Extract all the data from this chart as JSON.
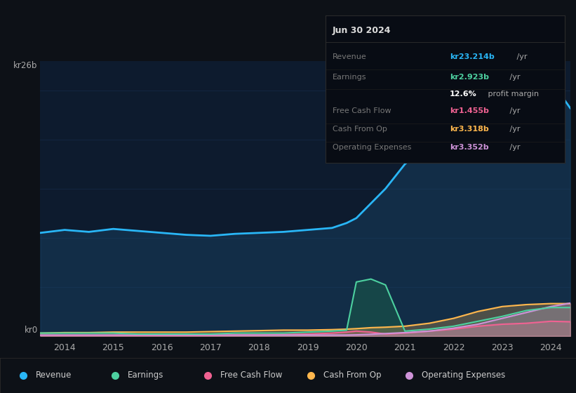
{
  "bg_color": "#0d1117",
  "plot_bg_color": "#0d1b2e",
  "ylabel_top": "kr26b",
  "ylabel_bottom": "kr0",
  "x_years": [
    2013.5,
    2014.0,
    2014.5,
    2015.0,
    2015.5,
    2016.0,
    2016.5,
    2017.0,
    2017.5,
    2018.0,
    2018.5,
    2019.0,
    2019.5,
    2019.8,
    2020.0,
    2020.3,
    2020.6,
    2021.0,
    2021.5,
    2022.0,
    2022.5,
    2023.0,
    2023.5,
    2024.0,
    2024.4
  ],
  "revenue": [
    10.5,
    10.8,
    10.6,
    10.9,
    10.7,
    10.5,
    10.3,
    10.2,
    10.4,
    10.5,
    10.6,
    10.8,
    11.0,
    11.5,
    12.0,
    13.5,
    15.0,
    17.5,
    19.5,
    21.5,
    24.0,
    26.5,
    27.2,
    26.0,
    23.2
  ],
  "earnings": [
    0.3,
    0.3,
    0.3,
    0.3,
    0.2,
    0.2,
    0.2,
    0.2,
    0.3,
    0.3,
    0.3,
    0.4,
    0.5,
    0.6,
    5.5,
    5.8,
    5.2,
    0.5,
    0.7,
    1.0,
    1.5,
    2.0,
    2.6,
    2.9,
    2.9
  ],
  "free_cash_flow": [
    0.05,
    0.05,
    0.05,
    0.05,
    0.05,
    0.02,
    0.02,
    0.05,
    0.1,
    0.1,
    0.15,
    0.2,
    0.3,
    0.4,
    0.5,
    0.4,
    0.2,
    0.3,
    0.5,
    0.7,
    1.0,
    1.2,
    1.3,
    1.5,
    1.45
  ],
  "cash_from_op": [
    0.3,
    0.35,
    0.35,
    0.4,
    0.4,
    0.4,
    0.4,
    0.45,
    0.5,
    0.55,
    0.6,
    0.6,
    0.65,
    0.7,
    0.75,
    0.85,
    0.9,
    1.0,
    1.3,
    1.8,
    2.5,
    3.0,
    3.2,
    3.3,
    3.3
  ],
  "operating_expenses": [
    0.1,
    0.1,
    0.1,
    0.1,
    0.1,
    0.1,
    0.1,
    0.1,
    0.1,
    0.1,
    0.1,
    0.1,
    0.1,
    0.1,
    0.12,
    0.18,
    0.25,
    0.35,
    0.5,
    0.8,
    1.2,
    1.8,
    2.4,
    3.0,
    3.35
  ],
  "revenue_color": "#29b6f6",
  "earnings_color": "#4dd0a0",
  "free_cash_flow_color": "#f06292",
  "cash_from_op_color": "#ffb74d",
  "operating_expenses_color": "#ce93d8",
  "revenue_fill": "#1a4a6e",
  "earnings_fill": "#1a5c4a",
  "x_ticks": [
    2014,
    2015,
    2016,
    2017,
    2018,
    2019,
    2020,
    2021,
    2022,
    2023,
    2024
  ],
  "ylim": [
    0,
    28
  ],
  "grid_color": "#1e3a5f",
  "grid_alpha": 0.5,
  "tooltip_date": "Jun 30 2024",
  "tooltip_rows": [
    {
      "label": "Revenue",
      "value": "kr23.214b",
      "unit": " /yr",
      "color": "#29b6f6"
    },
    {
      "label": "Earnings",
      "value": "kr2.923b",
      "unit": " /yr",
      "color": "#4dd0a0"
    },
    {
      "label": "",
      "value": "12.6%",
      "unit": " profit margin",
      "color": "#ffffff"
    },
    {
      "label": "Free Cash Flow",
      "value": "kr1.455b",
      "unit": " /yr",
      "color": "#f06292"
    },
    {
      "label": "Cash From Op",
      "value": "kr3.318b",
      "unit": " /yr",
      "color": "#ffb74d"
    },
    {
      "label": "Operating Expenses",
      "value": "kr3.352b",
      "unit": " /yr",
      "color": "#ce93d8"
    }
  ],
  "legend_items": [
    {
      "label": "Revenue",
      "color": "#29b6f6"
    },
    {
      "label": "Earnings",
      "color": "#4dd0a0"
    },
    {
      "label": "Free Cash Flow",
      "color": "#f06292"
    },
    {
      "label": "Cash From Op",
      "color": "#ffb74d"
    },
    {
      "label": "Operating Expenses",
      "color": "#ce93d8"
    }
  ]
}
